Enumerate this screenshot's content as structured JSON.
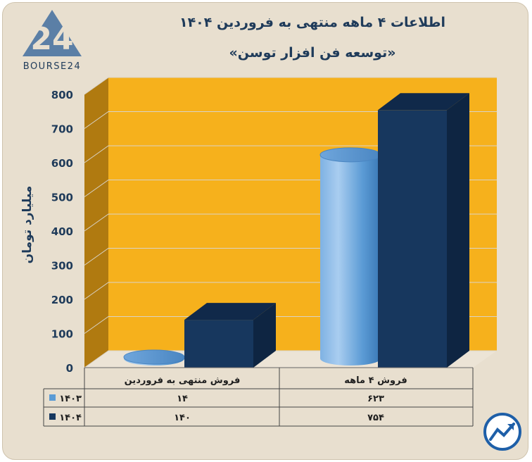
{
  "header": {
    "title": "اطلاعات ۴ ماهه منتهی به فروردین ۱۴۰۴",
    "subtitle": "«توسعه فن افزار توسن»",
    "logo_text": "BOURSE24"
  },
  "colors": {
    "background": "#e8dfcf",
    "plot_back": "#f6b11c",
    "plot_side": "#b07a10",
    "series_1403": "#5b9bd5",
    "series_1404": "#17375e",
    "title": "#1f3b5a"
  },
  "chart_data": {
    "type": "bar",
    "title": "اطلاعات ۴ ماهه منتهی به فروردین ۱۴۰۴",
    "subtitle": "«توسعه فن افزار توسن»",
    "ylabel": "میلیارد تومان",
    "xlabel": "",
    "ylim": [
      0,
      800
    ],
    "yticks": [
      0,
      100,
      200,
      300,
      400,
      500,
      600,
      700,
      800
    ],
    "ytick_labels": [
      "0",
      "100",
      "200",
      "300",
      "400",
      "500",
      "600",
      "700",
      "800"
    ],
    "grid": true,
    "categories": [
      "فروش منتهی به  فروردین",
      "فروش ۴  ماهه"
    ],
    "series": [
      {
        "name": "۱۴۰۳",
        "values": [
          14,
          623
        ],
        "value_labels": [
          "۱۴",
          "۶۲۳"
        ],
        "shape": "cylinder",
        "color": "#5b9bd5"
      },
      {
        "name": "۱۴۰۴",
        "values": [
          140,
          754
        ],
        "value_labels": [
          "۱۴۰",
          "۷۵۴"
        ],
        "shape": "box",
        "color": "#17375e"
      }
    ],
    "legend": "data-table-left"
  }
}
